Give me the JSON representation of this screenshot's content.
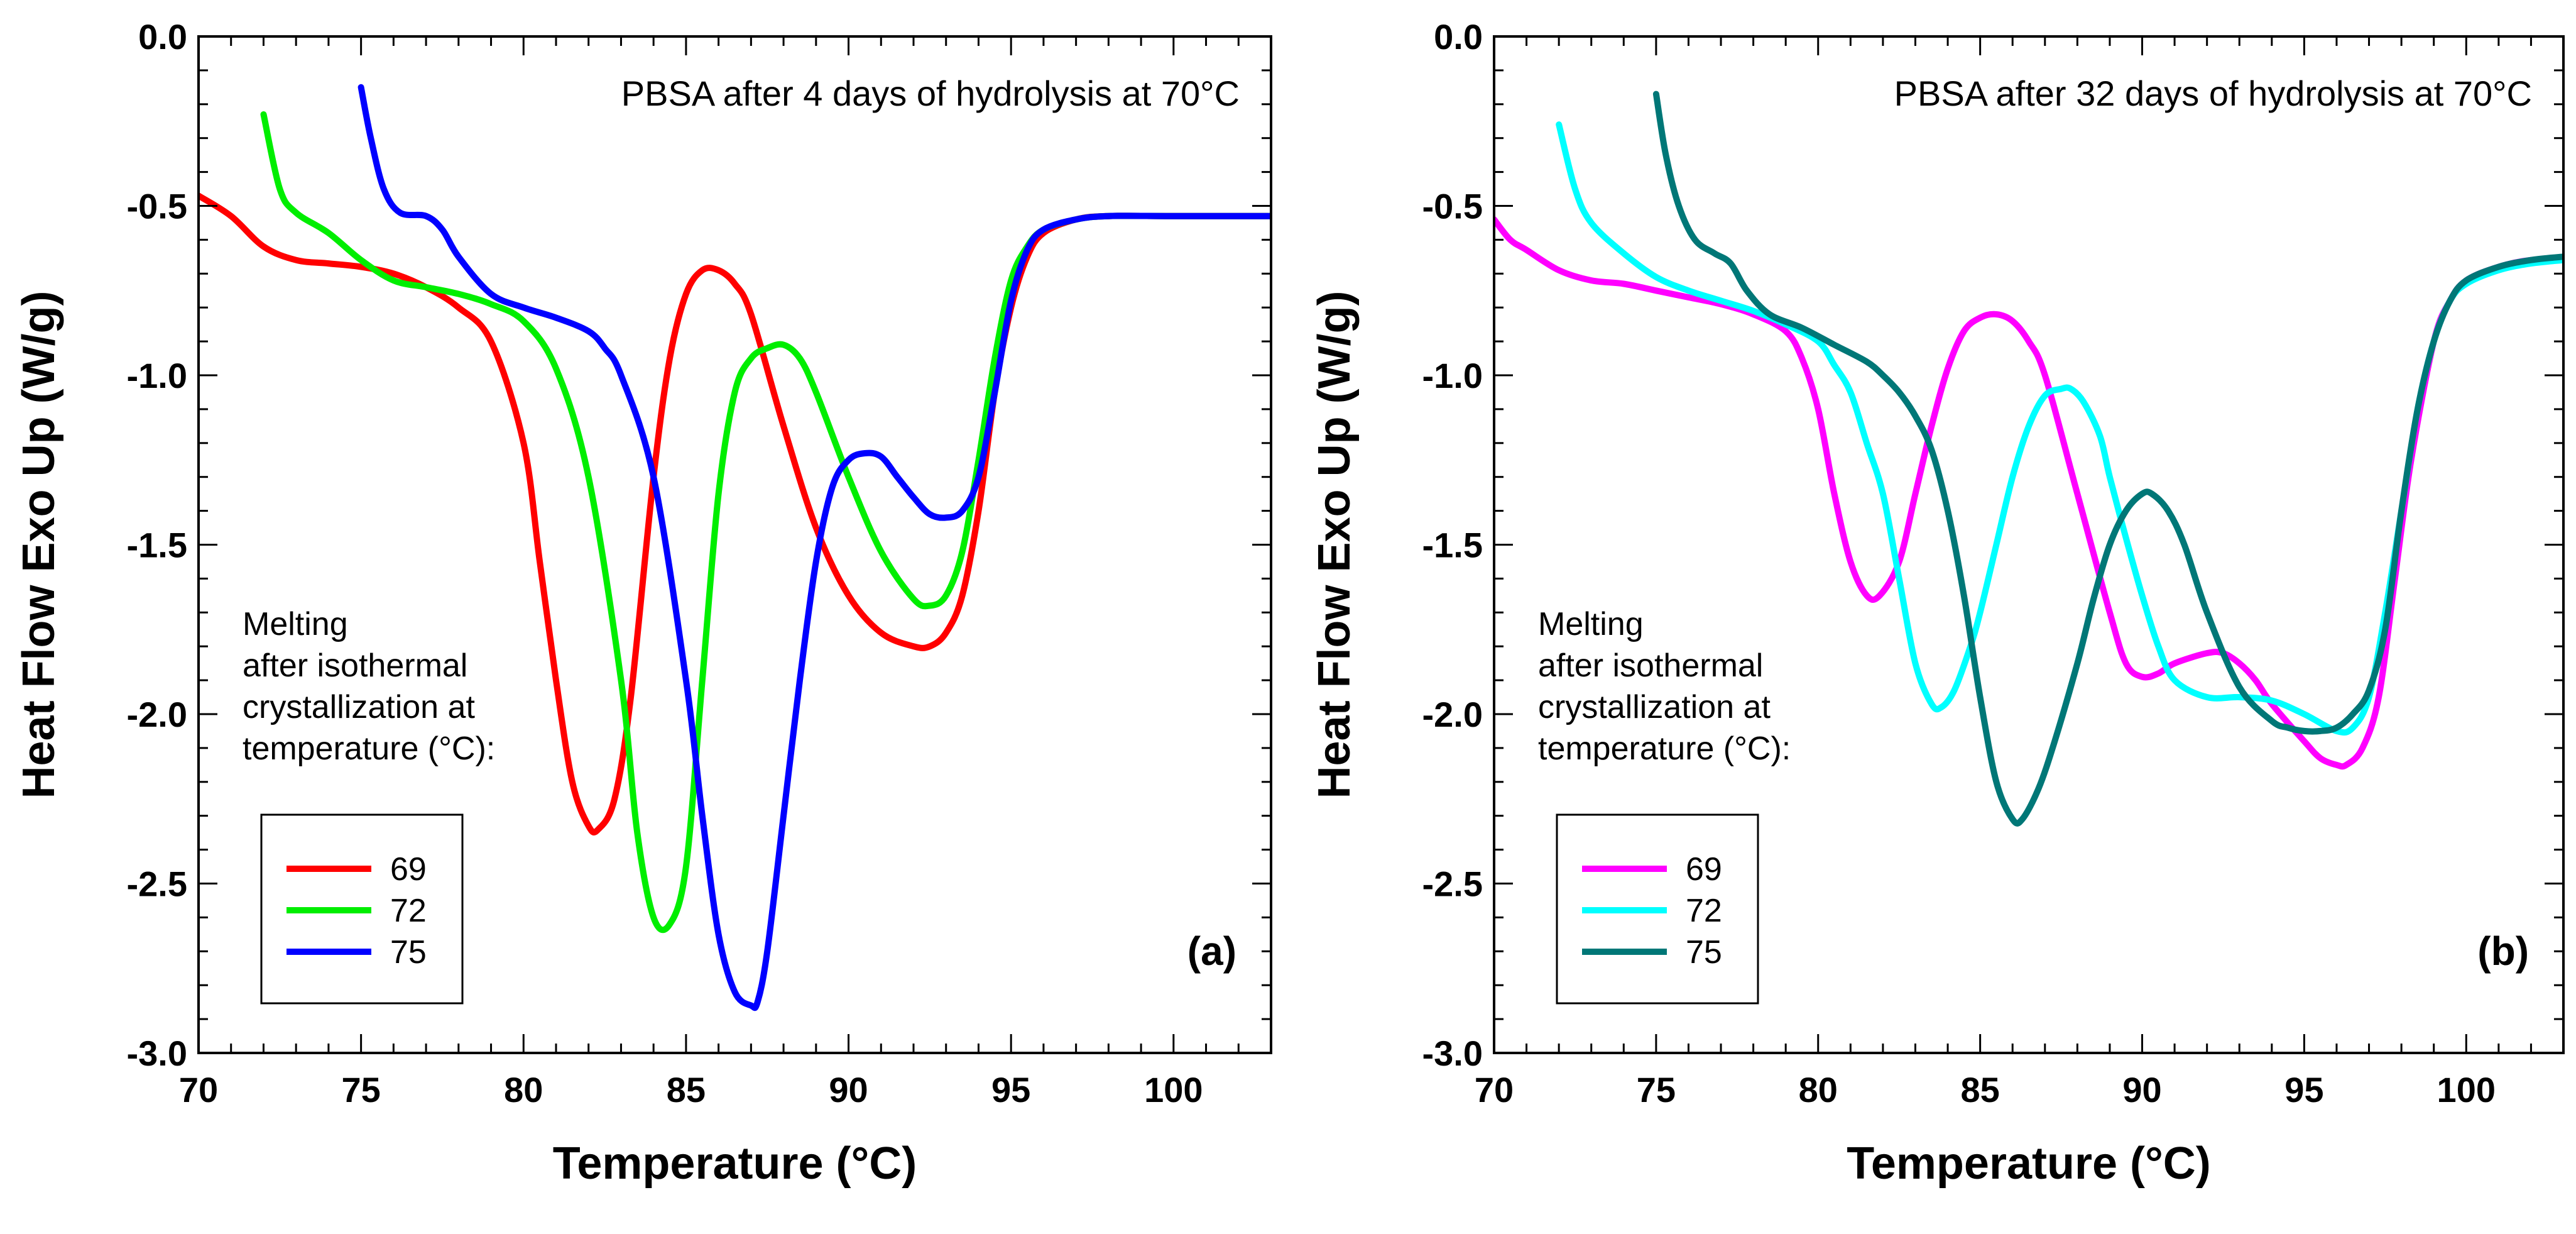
{
  "chart_data": [
    {
      "type": "line",
      "title": "PBSA after 4 days of hydrolysis at 70°C",
      "panel_label": "(a)",
      "xlabel": "Temperature (°C)",
      "ylabel": "Heat Flow Exo Up (W/g)",
      "xlim": [
        70,
        103
      ],
      "ylim": [
        -3.0,
        0.0
      ],
      "xticks": [
        70,
        75,
        80,
        85,
        90,
        95,
        100
      ],
      "xtick_labels": [
        "70",
        "75",
        "80",
        "85",
        "90",
        "95",
        "100"
      ],
      "yticks": [
        0.0,
        -0.5,
        -1.0,
        -1.5,
        -2.0,
        -2.5,
        -3.0
      ],
      "ytick_labels": [
        "0.0",
        "-0.5",
        "-1.0",
        "-1.5",
        "-2.0",
        "-2.5",
        "-3.0"
      ],
      "annotation": [
        "Melting",
        "after isothermal",
        "crystallization at",
        "temperature (°C):"
      ],
      "series": [
        {
          "name": "69",
          "color": "#ff0000",
          "x": [
            70,
            71,
            72,
            73,
            74,
            75,
            76,
            77,
            78,
            79,
            80,
            80.5,
            81,
            81.5,
            82,
            82.3,
            82.8,
            83.3,
            84,
            84.5,
            85,
            85.5,
            86,
            86.5,
            87,
            88,
            89,
            90,
            91,
            92,
            92.5,
            93,
            93.5,
            94,
            94.5,
            95,
            95.5,
            96,
            97,
            98,
            100,
            103
          ],
          "y": [
            -0.47,
            -0.53,
            -0.62,
            -0.66,
            -0.67,
            -0.68,
            -0.7,
            -0.74,
            -0.8,
            -0.9,
            -1.2,
            -1.55,
            -1.9,
            -2.2,
            -2.33,
            -2.34,
            -2.25,
            -1.95,
            -1.3,
            -0.95,
            -0.76,
            -0.69,
            -0.69,
            -0.73,
            -0.82,
            -1.15,
            -1.45,
            -1.65,
            -1.76,
            -1.8,
            -1.8,
            -1.76,
            -1.65,
            -1.4,
            -1.05,
            -0.8,
            -0.65,
            -0.58,
            -0.54,
            -0.53,
            -0.53,
            -0.53
          ]
        },
        {
          "name": "72",
          "color": "#00ee00",
          "x": [
            72,
            72.5,
            73,
            74,
            75,
            76,
            77,
            78,
            79,
            80,
            81,
            82,
            83,
            83.5,
            84,
            84.5,
            85,
            85.5,
            86,
            86.5,
            87,
            87.5,
            88,
            88.5,
            89,
            90,
            91,
            92,
            92.5,
            93,
            93.5,
            94,
            94.5,
            95,
            95.5,
            96,
            97,
            98,
            100,
            103
          ],
          "y": [
            -0.23,
            -0.45,
            -0.52,
            -0.58,
            -0.66,
            -0.72,
            -0.74,
            -0.76,
            -0.79,
            -0.84,
            -0.98,
            -1.3,
            -1.9,
            -2.35,
            -2.6,
            -2.62,
            -2.45,
            -1.9,
            -1.35,
            -1.05,
            -0.95,
            -0.92,
            -0.91,
            -0.95,
            -1.05,
            -1.3,
            -1.52,
            -1.66,
            -1.68,
            -1.65,
            -1.52,
            -1.25,
            -0.95,
            -0.72,
            -0.62,
            -0.57,
            -0.54,
            -0.53,
            -0.53,
            -0.53
          ]
        },
        {
          "name": "75",
          "color": "#0000ff",
          "x": [
            75,
            75.3,
            75.7,
            76.2,
            77,
            77.5,
            78,
            79,
            80,
            81,
            82,
            82.5,
            83,
            84,
            85,
            85.5,
            86,
            86.5,
            87,
            87.2,
            87.5,
            88,
            88.5,
            89,
            89.5,
            90,
            90.5,
            91,
            91.5,
            92,
            92.5,
            93,
            93.5,
            94,
            94.5,
            95,
            95.5,
            96,
            97,
            98,
            100,
            103
          ],
          "y": [
            -0.15,
            -0.3,
            -0.45,
            -0.52,
            -0.53,
            -0.57,
            -0.65,
            -0.76,
            -0.8,
            -0.83,
            -0.87,
            -0.92,
            -1.0,
            -1.3,
            -1.9,
            -2.3,
            -2.65,
            -2.82,
            -2.86,
            -2.85,
            -2.7,
            -2.3,
            -1.9,
            -1.55,
            -1.33,
            -1.25,
            -1.23,
            -1.24,
            -1.3,
            -1.36,
            -1.41,
            -1.42,
            -1.4,
            -1.3,
            -1.05,
            -0.78,
            -0.63,
            -0.57,
            -0.54,
            -0.53,
            -0.53,
            -0.53
          ]
        }
      ]
    },
    {
      "type": "line",
      "title": "PBSA after 32 days of hydrolysis at 70°C",
      "panel_label": "(b)",
      "xlabel": "Temperature (°C)",
      "ylabel": "Heat Flow Exo Up (W/g)",
      "xlim": [
        70,
        103
      ],
      "ylim": [
        -3.0,
        0.0
      ],
      "xticks": [
        70,
        75,
        80,
        85,
        90,
        95,
        100
      ],
      "xtick_labels": [
        "70",
        "75",
        "80",
        "85",
        "90",
        "95",
        "100"
      ],
      "yticks": [
        0.0,
        -0.5,
        -1.0,
        -1.5,
        -2.0,
        -2.5,
        -3.0
      ],
      "ytick_labels": [
        "0.0",
        "-0.5",
        "-1.0",
        "-1.5",
        "-2.0",
        "-2.5",
        "-3.0"
      ],
      "annotation": [
        "Melting",
        "after isothermal",
        "crystallization at",
        "temperature (°C):"
      ],
      "series": [
        {
          "name": "69",
          "color": "#ff00ff",
          "x": [
            70,
            70.5,
            71,
            72,
            73,
            74,
            75,
            76,
            77,
            78,
            79,
            79.5,
            80,
            80.5,
            81,
            81.5,
            81.9,
            82.5,
            83,
            83.5,
            84,
            84.5,
            85,
            85.5,
            86,
            86.5,
            87,
            88,
            89,
            89.5,
            90,
            90.5,
            91,
            92,
            92.5,
            93,
            93.5,
            94,
            95,
            95.5,
            96,
            96.3,
            96.8,
            97.3,
            97.8,
            98.3,
            99,
            99.5,
            100,
            101,
            102,
            103
          ],
          "y": [
            -0.54,
            -0.6,
            -0.63,
            -0.69,
            -0.72,
            -0.73,
            -0.75,
            -0.77,
            -0.79,
            -0.82,
            -0.87,
            -0.95,
            -1.1,
            -1.35,
            -1.55,
            -1.65,
            -1.65,
            -1.55,
            -1.35,
            -1.15,
            -0.98,
            -0.87,
            -0.83,
            -0.82,
            -0.84,
            -0.9,
            -1.0,
            -1.35,
            -1.7,
            -1.85,
            -1.89,
            -1.88,
            -1.85,
            -1.82,
            -1.82,
            -1.85,
            -1.9,
            -1.97,
            -2.08,
            -2.13,
            -2.15,
            -2.15,
            -2.1,
            -1.95,
            -1.6,
            -1.25,
            -0.9,
            -0.78,
            -0.72,
            -0.68,
            -0.66,
            -0.66
          ]
        },
        {
          "name": "72",
          "color": "#00ffff",
          "x": [
            72,
            72.5,
            73,
            74,
            75,
            76,
            77,
            78,
            79,
            80,
            80.5,
            81,
            81.5,
            82,
            82.5,
            83,
            83.5,
            83.8,
            84.2,
            84.7,
            85,
            85.5,
            86,
            86.5,
            87,
            87.5,
            87.8,
            88.2,
            88.7,
            89,
            89.5,
            90,
            90.5,
            91,
            92,
            93,
            94,
            95,
            96,
            96.5,
            97,
            97.5,
            98,
            98.5,
            99,
            99.5,
            100,
            101,
            102,
            103
          ],
          "y": [
            -0.26,
            -0.45,
            -0.55,
            -0.64,
            -0.71,
            -0.75,
            -0.78,
            -0.81,
            -0.85,
            -0.9,
            -0.97,
            -1.05,
            -1.2,
            -1.35,
            -1.6,
            -1.85,
            -1.97,
            -1.98,
            -1.93,
            -1.8,
            -1.7,
            -1.5,
            -1.3,
            -1.15,
            -1.06,
            -1.04,
            -1.04,
            -1.08,
            -1.18,
            -1.3,
            -1.48,
            -1.65,
            -1.8,
            -1.9,
            -1.95,
            -1.95,
            -1.96,
            -2.0,
            -2.05,
            -2.04,
            -1.95,
            -1.7,
            -1.4,
            -1.1,
            -0.9,
            -0.78,
            -0.73,
            -0.69,
            -0.67,
            -0.66
          ]
        },
        {
          "name": "75",
          "color": "#007777",
          "x": [
            75,
            75.3,
            75.7,
            76.2,
            76.8,
            77.3,
            77.8,
            78.5,
            79.5,
            80.5,
            81.5,
            82,
            82.5,
            83,
            83.5,
            84,
            84.5,
            85,
            85.5,
            86,
            86.3,
            86.8,
            87.3,
            88,
            88.5,
            89,
            89.5,
            90,
            90.3,
            90.8,
            91.3,
            92,
            93,
            94,
            94.5,
            95,
            95.5,
            96,
            96.5,
            97,
            97.5,
            98,
            98.5,
            99,
            99.5,
            100,
            101,
            102,
            103
          ],
          "y": [
            -0.17,
            -0.35,
            -0.5,
            -0.6,
            -0.64,
            -0.67,
            -0.75,
            -0.82,
            -0.86,
            -0.91,
            -0.96,
            -1.0,
            -1.05,
            -1.12,
            -1.22,
            -1.4,
            -1.65,
            -1.95,
            -2.2,
            -2.31,
            -2.31,
            -2.22,
            -2.08,
            -1.85,
            -1.66,
            -1.5,
            -1.4,
            -1.35,
            -1.35,
            -1.4,
            -1.5,
            -1.7,
            -1.92,
            -2.02,
            -2.04,
            -2.05,
            -2.05,
            -2.04,
            -2.0,
            -1.93,
            -1.75,
            -1.4,
            -1.1,
            -0.9,
            -0.78,
            -0.72,
            -0.68,
            -0.66,
            -0.65
          ]
        }
      ]
    }
  ]
}
